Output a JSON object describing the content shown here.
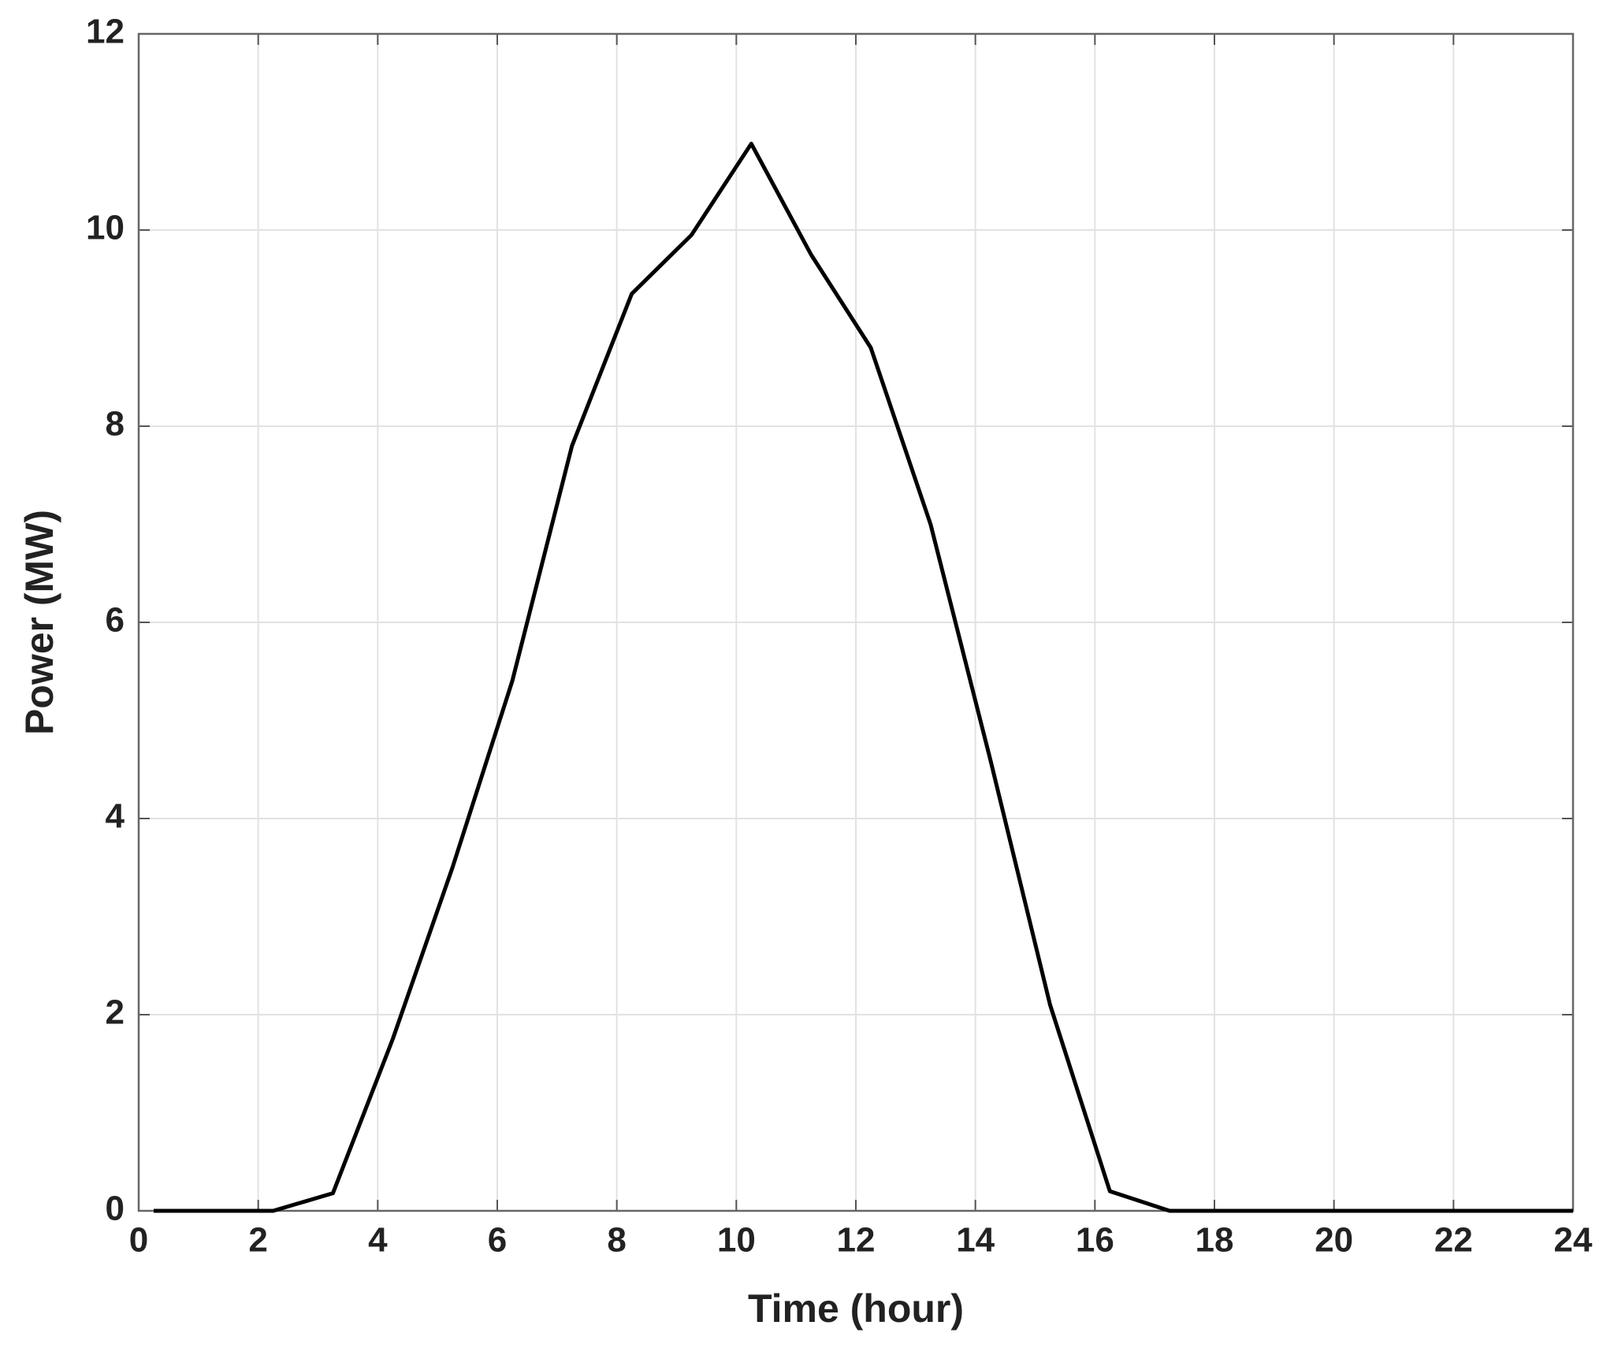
{
  "chart_data": {
    "type": "line",
    "xlabel": "Time (hour)",
    "ylabel": "Power (MW)",
    "x": [
      0.25,
      1.25,
      2.25,
      3.25,
      4.25,
      5.25,
      6.25,
      7.25,
      8.25,
      9.25,
      10.25,
      11.25,
      12.25,
      13.25,
      14.25,
      15.25,
      16.25,
      17.25,
      18.25,
      19.25,
      20.25,
      21.25,
      22.25,
      23.25,
      24
    ],
    "series": [
      {
        "name": "Power",
        "color": "#000000",
        "values": [
          0,
          0,
          0,
          0.18,
          1.75,
          3.5,
          5.4,
          7.8,
          9.35,
          9.95,
          10.88,
          9.75,
          8.8,
          7.0,
          4.6,
          2.1,
          0.2,
          0,
          0,
          0,
          0,
          0,
          0,
          0,
          0
        ]
      }
    ],
    "xlim": [
      0,
      24
    ],
    "xticks": [
      0,
      2,
      4,
      6,
      8,
      10,
      12,
      14,
      16,
      18,
      20,
      22,
      24
    ],
    "ylim": [
      0,
      12
    ],
    "yticks": [
      0,
      2,
      4,
      6,
      8,
      10,
      12
    ],
    "grid": true
  }
}
